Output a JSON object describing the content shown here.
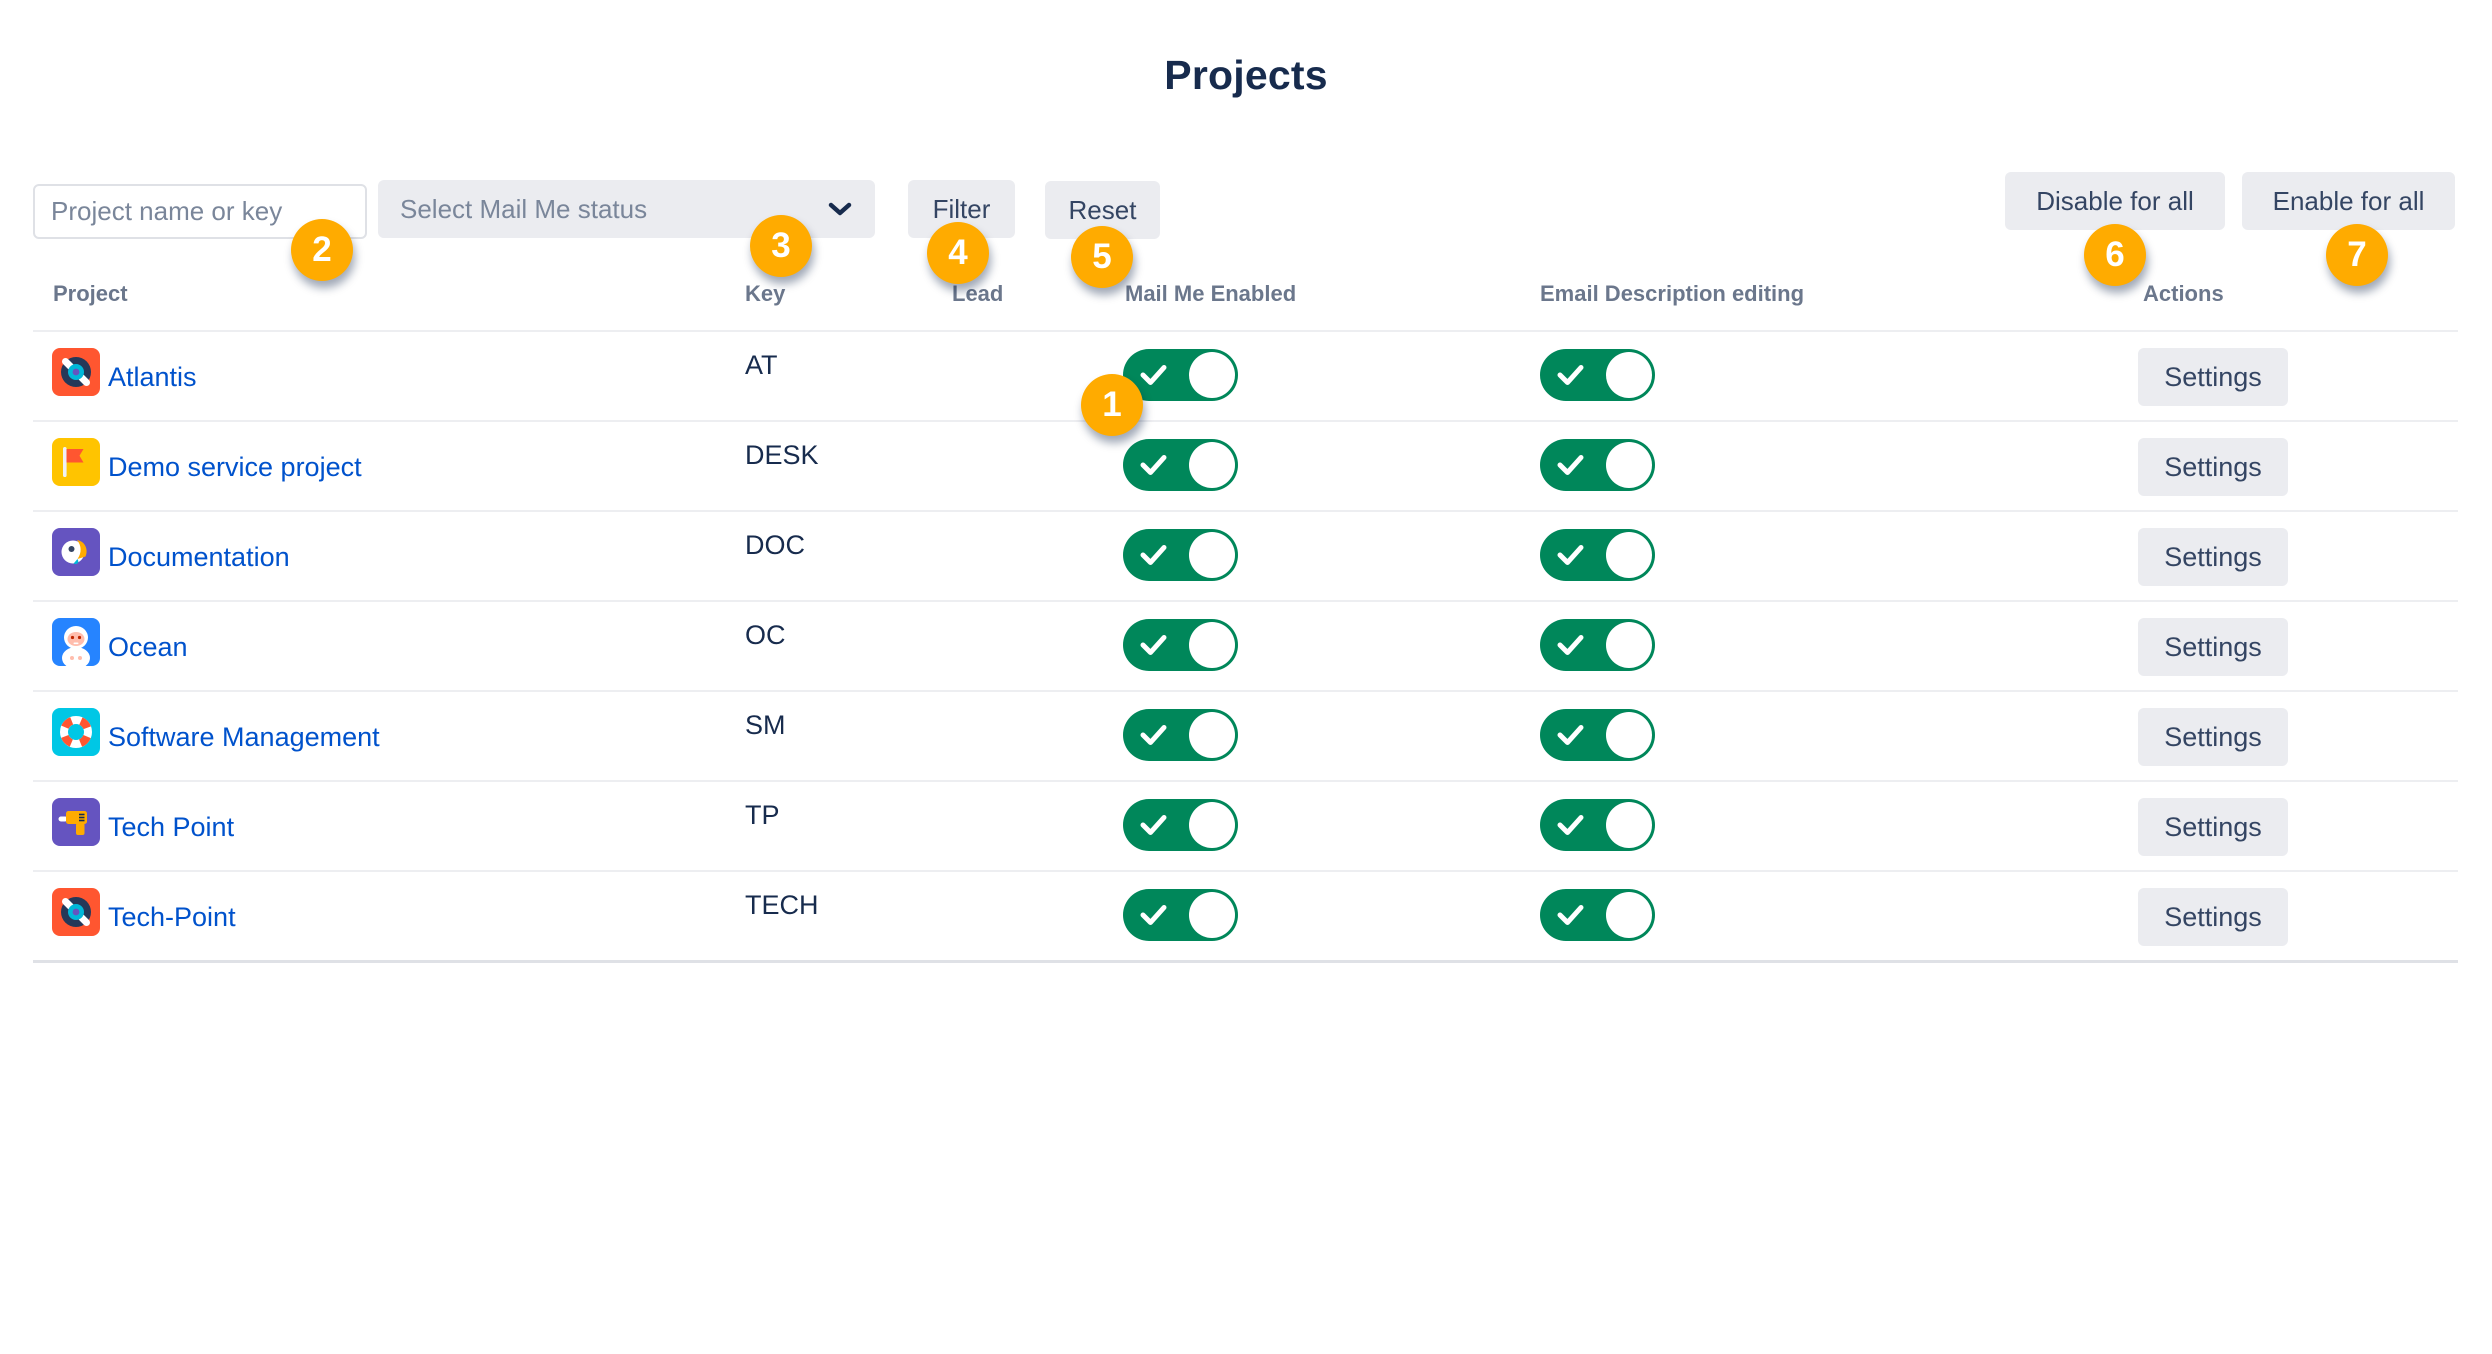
{
  "page": {
    "title": "Projects"
  },
  "colors": {
    "accent_orange": "#FFAB00",
    "toggle_green": "#00875A",
    "link_blue": "#0052CC",
    "button_gray": "#EBECF0"
  },
  "filter_bar": {
    "search_placeholder": "Project name or key",
    "status_select_value": "Select Mail Me status",
    "filter_label": "Filter",
    "reset_label": "Reset"
  },
  "bulk_actions": {
    "disable_all_label": "Disable for all",
    "enable_all_label": "Enable for all"
  },
  "callouts": [
    {
      "num": "1"
    },
    {
      "num": "2"
    },
    {
      "num": "3"
    },
    {
      "num": "4"
    },
    {
      "num": "5"
    },
    {
      "num": "6"
    },
    {
      "num": "7"
    }
  ],
  "table": {
    "columns": [
      "Project",
      "Key",
      "Lead",
      "Mail Me Enabled",
      "Email Description editing",
      "Actions"
    ],
    "settings_label": "Settings",
    "rows": [
      {
        "name": "Atlantis",
        "key": "AT",
        "lead": "",
        "mail_me_enabled": true,
        "email_description_editing": true,
        "avatar": "vinyl-disc",
        "avatar_bg": "#FF5630"
      },
      {
        "name": "Demo service project",
        "key": "DESK",
        "lead": "",
        "mail_me_enabled": true,
        "email_description_editing": true,
        "avatar": "flag",
        "avatar_bg": "#FFC400"
      },
      {
        "name": "Documentation",
        "key": "DOC",
        "lead": "",
        "mail_me_enabled": true,
        "email_description_editing": true,
        "avatar": "parrot",
        "avatar_bg": "#6554C0"
      },
      {
        "name": "Ocean",
        "key": "OC",
        "lead": "",
        "mail_me_enabled": true,
        "email_description_editing": true,
        "avatar": "yeti",
        "avatar_bg": "#2684FF"
      },
      {
        "name": "Software Management",
        "key": "SM",
        "lead": "",
        "mail_me_enabled": true,
        "email_description_editing": true,
        "avatar": "lifebuoy",
        "avatar_bg": "#00C7E5"
      },
      {
        "name": "Tech Point",
        "key": "TP",
        "lead": "",
        "mail_me_enabled": true,
        "email_description_editing": true,
        "avatar": "drill",
        "avatar_bg": "#6554C0"
      },
      {
        "name": "Tech-Point",
        "key": "TECH",
        "lead": "",
        "mail_me_enabled": true,
        "email_description_editing": true,
        "avatar": "vinyl-disc",
        "avatar_bg": "#FF5630"
      }
    ]
  }
}
